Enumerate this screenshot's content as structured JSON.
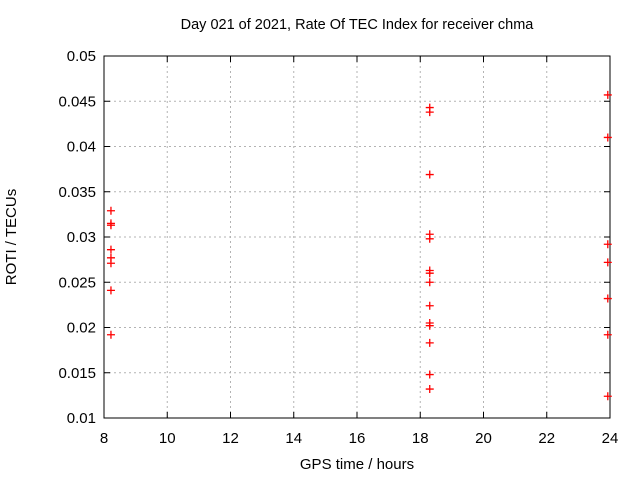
{
  "chart_data": {
    "type": "scatter",
    "title": "Day 021 of 2021, Rate Of TEC Index for receiver chma",
    "xlabel": "GPS time / hours",
    "ylabel": "ROTI / TECUs",
    "xlim": [
      8,
      24
    ],
    "ylim": [
      0.01,
      0.05
    ],
    "grid": true,
    "legend": "none",
    "x_ticks": {
      "values": [
        8,
        10,
        12,
        14,
        16,
        18,
        20,
        22,
        24
      ],
      "labels": [
        "8",
        "10",
        "12",
        "14",
        "16",
        "18",
        "20",
        "22",
        "24"
      ]
    },
    "y_ticks": {
      "values": [
        0.01,
        0.015,
        0.02,
        0.025,
        0.03,
        0.035,
        0.04,
        0.045,
        0.05
      ],
      "labels": [
        "0.01",
        "0.015",
        "0.02",
        "0.025",
        "0.03",
        "0.035",
        "0.04",
        "0.045",
        "0.05"
      ]
    },
    "marker": {
      "shape": "plus",
      "color": "#ff0000",
      "size": 9
    },
    "colors": {
      "marker": "#ff0000",
      "grid": "#b3b3b3",
      "axis": "#000000",
      "text": "#000000",
      "background": "#ffffff"
    },
    "series": [
      {
        "name": "ROTI",
        "points": [
          [
            8.22,
            0.0329
          ],
          [
            8.22,
            0.0315
          ],
          [
            8.22,
            0.0313
          ],
          [
            8.22,
            0.0286
          ],
          [
            8.22,
            0.0277
          ],
          [
            8.22,
            0.0271
          ],
          [
            8.22,
            0.0241
          ],
          [
            8.22,
            0.0192
          ],
          [
            18.3,
            0.0443
          ],
          [
            18.3,
            0.0438
          ],
          [
            18.3,
            0.0369
          ],
          [
            18.3,
            0.0303
          ],
          [
            18.3,
            0.0298
          ],
          [
            18.3,
            0.0263
          ],
          [
            18.3,
            0.026
          ],
          [
            18.3,
            0.025
          ],
          [
            18.3,
            0.0224
          ],
          [
            18.3,
            0.0205
          ],
          [
            18.3,
            0.0202
          ],
          [
            18.3,
            0.0183
          ],
          [
            18.3,
            0.0148
          ],
          [
            18.3,
            0.0132
          ],
          [
            23.93,
            0.0457
          ],
          [
            23.93,
            0.041
          ],
          [
            23.93,
            0.0292
          ],
          [
            23.93,
            0.0272
          ],
          [
            23.93,
            0.0232
          ],
          [
            23.93,
            0.0192
          ],
          [
            23.93,
            0.0124
          ]
        ]
      }
    ]
  }
}
